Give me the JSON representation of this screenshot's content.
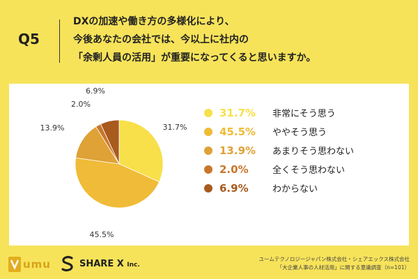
{
  "header": {
    "question_number": "Q5",
    "question_lines": [
      "DXの加速や働き方の多様化により、",
      "今後あなたの会社では、今以上に社内の",
      "「余剰人員の活用」が重要になってくると思いますか。"
    ]
  },
  "chart_data": {
    "type": "pie",
    "title": "",
    "categories": [
      "非常にそう思う",
      "ややそう思う",
      "あまりそう思わない",
      "全くそう思わない",
      "わからない"
    ],
    "values": [
      31.7,
      45.5,
      13.9,
      2.0,
      6.9
    ],
    "value_labels": [
      "31.7%",
      "45.5%",
      "13.9%",
      "2.0%",
      "6.9%"
    ],
    "colors": [
      "#f7e04a",
      "#f0bb38",
      "#dfa236",
      "#c8772a",
      "#a85a1f"
    ],
    "start_angle_deg": 0,
    "direction": "clockwise",
    "legend_placement": "right"
  },
  "footer": {
    "logo_umu": "umu",
    "logo_sharex": "SHARE X",
    "logo_sharex_suffix": "Inc.",
    "source_lines": [
      "ユームテクノロジージャパン株式会社・シェアエックス株式会社",
      "「大企業人事の人材活用」に関する意識調査（n=101）"
    ]
  }
}
